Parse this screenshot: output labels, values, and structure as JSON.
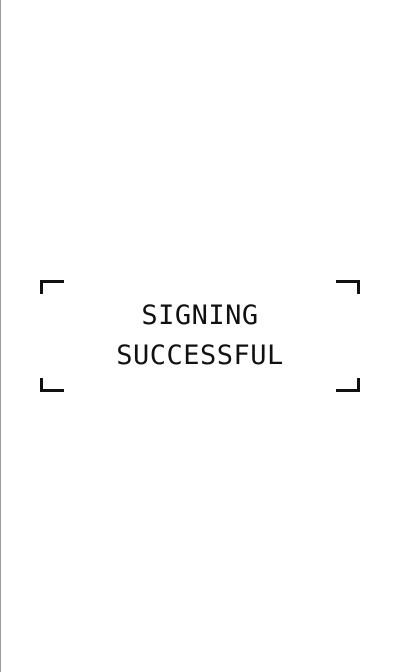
{
  "status": {
    "line1": "SIGNING",
    "line2": "SUCCESSFUL"
  },
  "colors": {
    "background": "#ffffff",
    "text": "#111111",
    "frame": "#111111"
  }
}
